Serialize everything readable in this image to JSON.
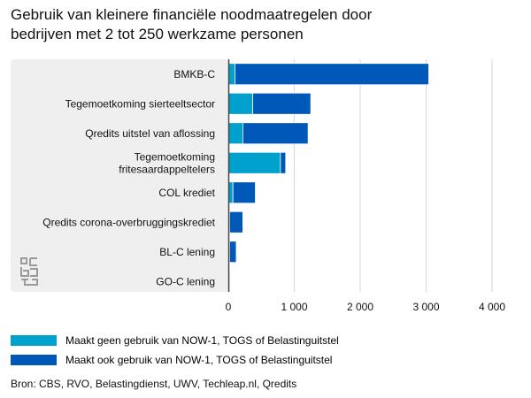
{
  "title_lines": [
    "Gebruik van kleinere financiële noodmaatregelen door",
    "bedrijven met 2 tot 250 werkzame personen"
  ],
  "chart_data": {
    "type": "bar",
    "orientation": "horizontal",
    "stacked": true,
    "categories": [
      "BMKB-C",
      "Tegemoetkoming sierteeltsector",
      "Qredits uitstel van aflossing",
      "Tegemoetkoming fritesaardappeltelers",
      "COL krediet",
      "Qredits corona-overbruggingskrediet",
      "BL-C lening",
      "GO-C lening"
    ],
    "category_lines": [
      [
        "BMKB-C"
      ],
      [
        "Tegemoetkoming sierteeltsector"
      ],
      [
        "Qredits uitstel van aflossing"
      ],
      [
        "Tegemoetkoming",
        "fritesaardappeltelers"
      ],
      [
        "COL krediet"
      ],
      [
        "Qredits corona-overbruggingskrediet"
      ],
      [
        "BL-C lening"
      ],
      [
        "GO-C lening"
      ]
    ],
    "series": [
      {
        "name": "Maakt geen gebruik van NOW-1, TOGS of Belastinguitstel",
        "color": "#00a1cd",
        "values": [
          100,
          370,
          220,
          790,
          70,
          20,
          20,
          5
        ]
      },
      {
        "name": "Maakt ook gebruik van NOW-1, TOGS of Belastinguitstel",
        "color": "#0058b8",
        "values": [
          2940,
          880,
          990,
          80,
          340,
          200,
          100,
          15
        ]
      }
    ],
    "xlim": [
      0,
      4000
    ],
    "xticks": [
      0,
      1000,
      2000,
      3000,
      4000
    ],
    "xtick_labels": [
      "0",
      "1 000",
      "2 000",
      "3 000",
      "4 000"
    ],
    "grid": "vertical",
    "legend_position": "bottom-left"
  },
  "logo_text": "cbs",
  "source": "Bron: CBS, RVO, Belastingdienst, UWV, Techleap.nl, Qredits"
}
